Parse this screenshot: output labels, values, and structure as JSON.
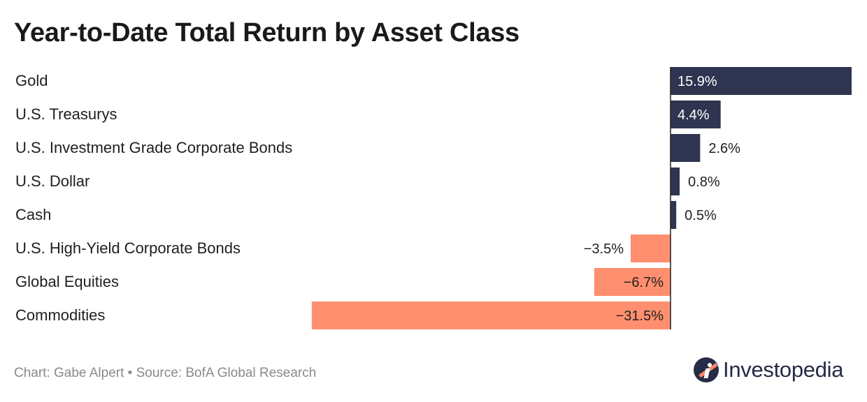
{
  "title": "Year-to-Date Total Return by Asset Class",
  "footer": {
    "credit": "Chart: Gabe Alpert",
    "separator": "•",
    "source": "Source: BofA Global Research"
  },
  "logo": {
    "text": "Investopedia",
    "icon": "investopedia-logo-icon"
  },
  "colors": {
    "positive": "#2f3550",
    "negative": "#ff8f6e",
    "axis": "#1f1f1f"
  },
  "chart_data": {
    "type": "bar",
    "orientation": "horizontal",
    "categories": [
      "Gold",
      "U.S. Treasurys",
      "U.S. Investment Grade Corporate Bonds",
      "U.S. Dollar",
      "Cash",
      "U.S. High-Yield Corporate Bonds",
      "Global Equities",
      "Commodities"
    ],
    "values": [
      15.9,
      4.4,
      2.6,
      0.8,
      0.5,
      -3.5,
      -6.7,
      -31.5
    ],
    "labels": [
      "15.9%",
      "4.4%",
      "2.6%",
      "0.8%",
      "0.5%",
      "−3.5%",
      "−6.7%",
      "−31.5%"
    ],
    "unit": "%",
    "xlim": [
      -31.5,
      15.9
    ],
    "grid": false,
    "legend": "none"
  }
}
